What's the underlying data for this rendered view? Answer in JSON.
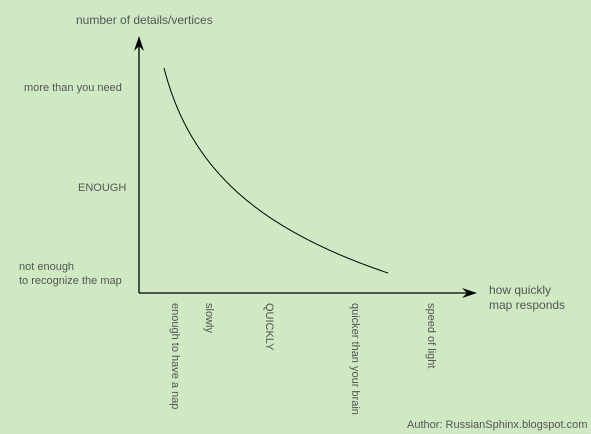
{
  "diagram": {
    "y_axis_title": "number of details/vertices",
    "x_axis_title_line1": "how quickly",
    "x_axis_title_line2": "map responds",
    "y_labels": {
      "top": "more than you need",
      "middle": "ENOUGH",
      "bottom_line1": "not enough",
      "bottom_line2": "to recognize the map"
    },
    "x_labels": [
      "enough to have a nap",
      "slowly",
      "QUICKLY",
      "quicker than your brain",
      "speed of light"
    ],
    "author": "Author: RussianSphinx.blogspot.com",
    "colors": {
      "background": "#cfe9c3",
      "text": "#555555",
      "line": "#000000"
    }
  }
}
